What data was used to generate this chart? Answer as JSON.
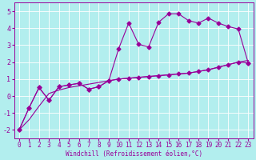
{
  "background_color": "#b2eeee",
  "grid_color": "#ffffff",
  "line_color": "#990099",
  "xlabel": "Windchill (Refroidissement éolien,°C)",
  "xlim": [
    -0.5,
    23.5
  ],
  "ylim": [
    -2.5,
    5.5
  ],
  "yticks": [
    -2,
    -1,
    0,
    1,
    2,
    3,
    4,
    5
  ],
  "xticks": [
    0,
    1,
    2,
    3,
    4,
    5,
    6,
    7,
    8,
    9,
    10,
    11,
    12,
    13,
    14,
    15,
    16,
    17,
    18,
    19,
    20,
    21,
    22,
    23
  ],
  "line1_x": [
    0,
    1,
    2,
    3,
    4,
    5,
    6,
    7,
    8,
    9,
    10,
    11,
    12,
    13,
    14,
    15,
    16,
    17,
    18,
    19,
    20,
    21,
    22,
    23
  ],
  "line1_y": [
    -2.0,
    -1.4,
    -0.6,
    0.15,
    0.35,
    0.5,
    0.6,
    0.7,
    0.8,
    0.9,
    1.0,
    1.05,
    1.1,
    1.15,
    1.2,
    1.25,
    1.3,
    1.35,
    1.45,
    1.55,
    1.7,
    1.85,
    2.0,
    2.1
  ],
  "line2_x": [
    0,
    1,
    2,
    3,
    4,
    5,
    6,
    7,
    8,
    9,
    10,
    11,
    12,
    13,
    14,
    15,
    16,
    17,
    18,
    19,
    20,
    21,
    22,
    23
  ],
  "line2_y": [
    -2.0,
    -0.7,
    0.5,
    -0.25,
    0.55,
    0.65,
    0.75,
    0.4,
    0.55,
    0.9,
    2.8,
    4.3,
    3.05,
    2.9,
    4.35,
    4.85,
    4.85,
    4.45,
    4.3,
    4.6,
    4.3,
    4.1,
    3.95,
    1.95
  ],
  "line3_x": [
    0,
    1,
    2,
    3,
    4,
    5,
    6,
    7,
    8,
    9,
    10,
    11,
    12,
    13,
    14,
    15,
    16,
    17,
    18,
    19,
    20,
    21,
    22,
    23
  ],
  "line3_y": [
    -2.0,
    -0.7,
    0.5,
    -0.25,
    0.55,
    0.65,
    0.75,
    0.4,
    0.55,
    0.9,
    1.0,
    1.05,
    1.1,
    1.15,
    1.2,
    1.25,
    1.3,
    1.35,
    1.45,
    1.55,
    1.7,
    1.85,
    2.0,
    1.95
  ],
  "lw": 0.8,
  "markersize": 2.5,
  "xlabel_fontsize": 5.5,
  "tick_fontsize": 5.5
}
